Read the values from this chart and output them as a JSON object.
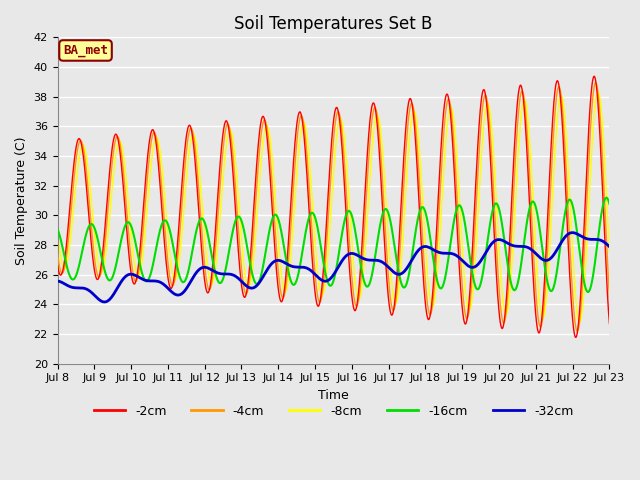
{
  "title": "Soil Temperatures Set B",
  "xlabel": "Time",
  "ylabel": "Soil Temperature (C)",
  "ylim": [
    20,
    42
  ],
  "annotation": "BA_met",
  "bg_color": "#e8e8e8",
  "plot_bg_color": "#e8e8e8",
  "grid_color": "#ffffff",
  "lines": {
    "-2cm": {
      "color": "#ff0000",
      "lw": 1.0
    },
    "-4cm": {
      "color": "#ff9900",
      "lw": 1.0
    },
    "-8cm": {
      "color": "#ffff00",
      "lw": 1.0
    },
    "-16cm": {
      "color": "#00dd00",
      "lw": 1.5
    },
    "-32cm": {
      "color": "#0000cc",
      "lw": 2.0
    }
  },
  "xtick_labels": [
    "Jul 8",
    "Jul 9",
    "Jul 10",
    "Jul 11",
    "Jul 12",
    "Jul 13",
    "Jul 14",
    "Jul 15",
    "Jul 16",
    "Jul 17",
    "Jul 18",
    "Jul 19",
    "Jul 20",
    "Jul 21",
    "Jul 22",
    "Jul 23"
  ],
  "ytick_values": [
    20,
    22,
    24,
    26,
    28,
    30,
    32,
    34,
    36,
    38,
    40,
    42
  ],
  "title_fontsize": 12,
  "label_fontsize": 9,
  "tick_fontsize": 8,
  "legend_fontsize": 9,
  "figsize": [
    6.4,
    4.8
  ],
  "dpi": 100
}
